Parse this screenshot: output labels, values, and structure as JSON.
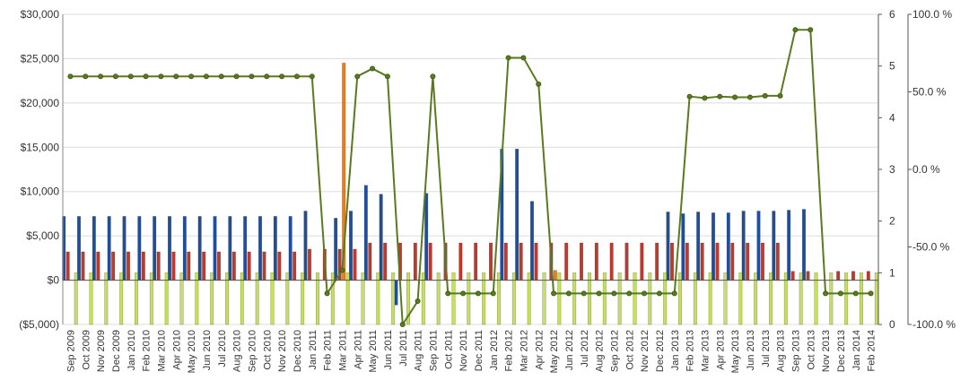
{
  "chart_data": {
    "type": "bar",
    "categories": [
      "Sep 2009",
      "Oct 2009",
      "Nov 2009",
      "Dec 2009",
      "Jan 2010",
      "Feb 2010",
      "Mar 2010",
      "Apr 2010",
      "May 2010",
      "Jun 2010",
      "Jul 2010",
      "Aug 2010",
      "Sep 2010",
      "Oct 2010",
      "Nov 2010",
      "Dec 2010",
      "Jan 2011",
      "Feb 2011",
      "Mar 2011",
      "Apr 2011",
      "May 2011",
      "Jun 2011",
      "Jul 2011",
      "Aug 2011",
      "Sep 2011",
      "Oct 2011",
      "Nov 2011",
      "Dec 2011",
      "Jan 2012",
      "Feb 2012",
      "Mar 2012",
      "Apr 2012",
      "May 2012",
      "Jun 2012",
      "Jul 2012",
      "Aug 2012",
      "Sep 2012",
      "Oct 2012",
      "Nov 2012",
      "Dec 2012",
      "Jan 2013",
      "Feb 2013",
      "Mar 2013",
      "Apr 2013",
      "May 2013",
      "Jun 2013",
      "Jul 2013",
      "Aug 2013",
      "Sep 2013",
      "Oct 2013",
      "Nov 2013",
      "Dec 2013",
      "Jan 2014",
      "Feb 2014"
    ],
    "y_left": {
      "ticks": [
        "$30,000",
        "$25,000",
        "$20,000",
        "$15,000",
        "$10,000",
        "$5,000",
        "$0",
        "($5,000)"
      ],
      "min": -5000,
      "max": 30000
    },
    "y_right_1": {
      "ticks": [
        "6",
        "5",
        "4",
        "3",
        "2",
        "1",
        "0"
      ],
      "min": 0,
      "max": 6
    },
    "y_right_2": {
      "ticks": [
        "100.0 %",
        "50.0 %",
        "0.0 %",
        "-50.0 %",
        "-100.0 %"
      ],
      "min": -100,
      "max": 100
    },
    "grid": true,
    "series": [
      {
        "color": "#1f4e9c",
        "axis": "left",
        "kind": "bar",
        "values": [
          7200,
          7200,
          7200,
          7200,
          7200,
          7200,
          7200,
          7200,
          7200,
          7200,
          7200,
          7200,
          7200,
          7200,
          7200,
          7200,
          7800,
          null,
          7000,
          7800,
          10700,
          9700,
          -2800,
          null,
          9800,
          null,
          null,
          null,
          null,
          14800,
          14800,
          8900,
          null,
          null,
          null,
          null,
          null,
          null,
          null,
          null,
          7700,
          7500,
          7700,
          7600,
          7600,
          7800,
          7800,
          7800,
          7900,
          8000,
          null,
          null,
          null,
          null
        ]
      },
      {
        "color": "#c0392b",
        "axis": "left",
        "kind": "bar",
        "values": [
          3200,
          3200,
          3200,
          3200,
          3200,
          3200,
          3200,
          3200,
          3200,
          3200,
          3200,
          3200,
          3200,
          3200,
          3200,
          3200,
          3500,
          3500,
          3500,
          3500,
          4200,
          4200,
          4200,
          4200,
          4200,
          4200,
          4200,
          4200,
          4200,
          4200,
          4200,
          4200,
          4200,
          4200,
          4200,
          4200,
          4200,
          4200,
          4200,
          4200,
          4200,
          4200,
          4200,
          4200,
          4200,
          4200,
          4200,
          4200,
          1000,
          1000,
          null,
          1000,
          1000,
          1000
        ]
      },
      {
        "color": "#f07d1a",
        "axis": "left",
        "kind": "bar",
        "values": [
          null,
          null,
          null,
          null,
          null,
          null,
          null,
          null,
          null,
          null,
          null,
          null,
          null,
          null,
          null,
          null,
          null,
          null,
          24500,
          null,
          null,
          null,
          null,
          null,
          null,
          null,
          null,
          null,
          null,
          null,
          null,
          null,
          1100,
          null,
          null,
          null,
          null,
          null,
          null,
          null,
          null,
          null,
          null,
          null,
          null,
          null,
          null,
          null,
          null,
          null,
          null,
          null,
          null,
          null
        ]
      },
      {
        "color": "#c5e05a",
        "axis": "right_1",
        "kind": "bar",
        "values": [
          1,
          1,
          1,
          1,
          1,
          1,
          1,
          1,
          1,
          1,
          1,
          1,
          1,
          1,
          1,
          1,
          1,
          1,
          1,
          1,
          1,
          1,
          1,
          1,
          1,
          1,
          1,
          1,
          1,
          1,
          1,
          1,
          1,
          1,
          1,
          1,
          1,
          1,
          1,
          1,
          1,
          1,
          1,
          1,
          1,
          1,
          1,
          1,
          1,
          1,
          1,
          1,
          1,
          1
        ]
      },
      {
        "color": "#5a7a1e",
        "axis": "right_2",
        "kind": "line",
        "values": [
          60,
          60,
          60,
          60,
          60,
          60,
          60,
          60,
          60,
          60,
          60,
          60,
          60,
          60,
          60,
          60,
          60,
          -80,
          -65,
          60,
          65,
          60,
          -100,
          -85,
          60,
          -80,
          -80,
          -80,
          -80,
          72,
          72,
          55,
          -80,
          -80,
          -80,
          -80,
          -80,
          -80,
          -80,
          -80,
          -80,
          47,
          46,
          47,
          46.5,
          46.5,
          47.5,
          47.5,
          90,
          90,
          -80,
          -80,
          -80,
          -80
        ]
      }
    ]
  }
}
